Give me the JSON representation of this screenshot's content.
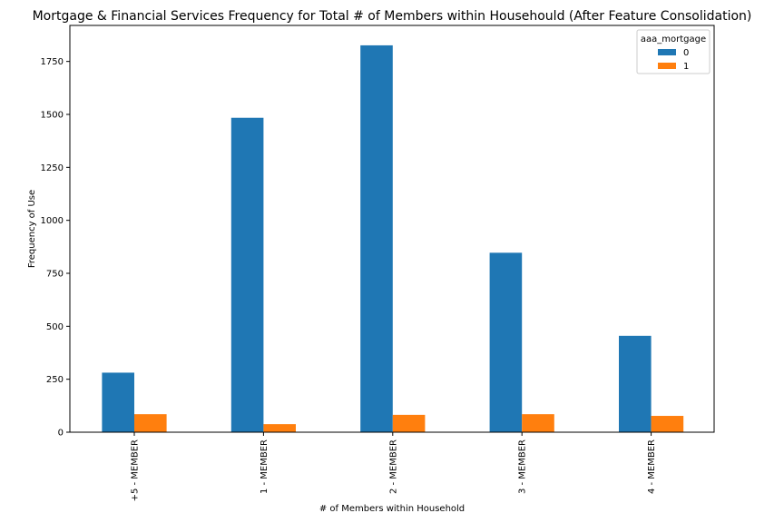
{
  "chart_data": {
    "type": "bar",
    "title": "Mortgage & Financial Services Frequency for Total # of Members within Househould (After Feature Consolidation)",
    "xlabel": "# of Members within Household",
    "ylabel": "Frequency of Use",
    "categories": [
      "+5 - MEMBER",
      "1 - MEMBER",
      "2 - MEMBER",
      "3 - MEMBER",
      "4 - MEMBER"
    ],
    "series": [
      {
        "name": "0",
        "color": "#1f77b4",
        "values": [
          281,
          1484,
          1826,
          847,
          455
        ]
      },
      {
        "name": "1",
        "color": "#ff7f0e",
        "values": [
          85,
          38,
          82,
          85,
          77
        ]
      }
    ],
    "ylim": [
      0,
      1920
    ],
    "yticks": [
      0,
      250,
      500,
      750,
      1000,
      1250,
      1500,
      1750
    ],
    "ytick_labels": [
      "0",
      "250",
      "500",
      "750",
      "1000",
      "1250",
      "1500",
      "1750"
    ],
    "legend": {
      "title": "aaa_mortgage",
      "placement": "top-right"
    },
    "grid": false
  }
}
